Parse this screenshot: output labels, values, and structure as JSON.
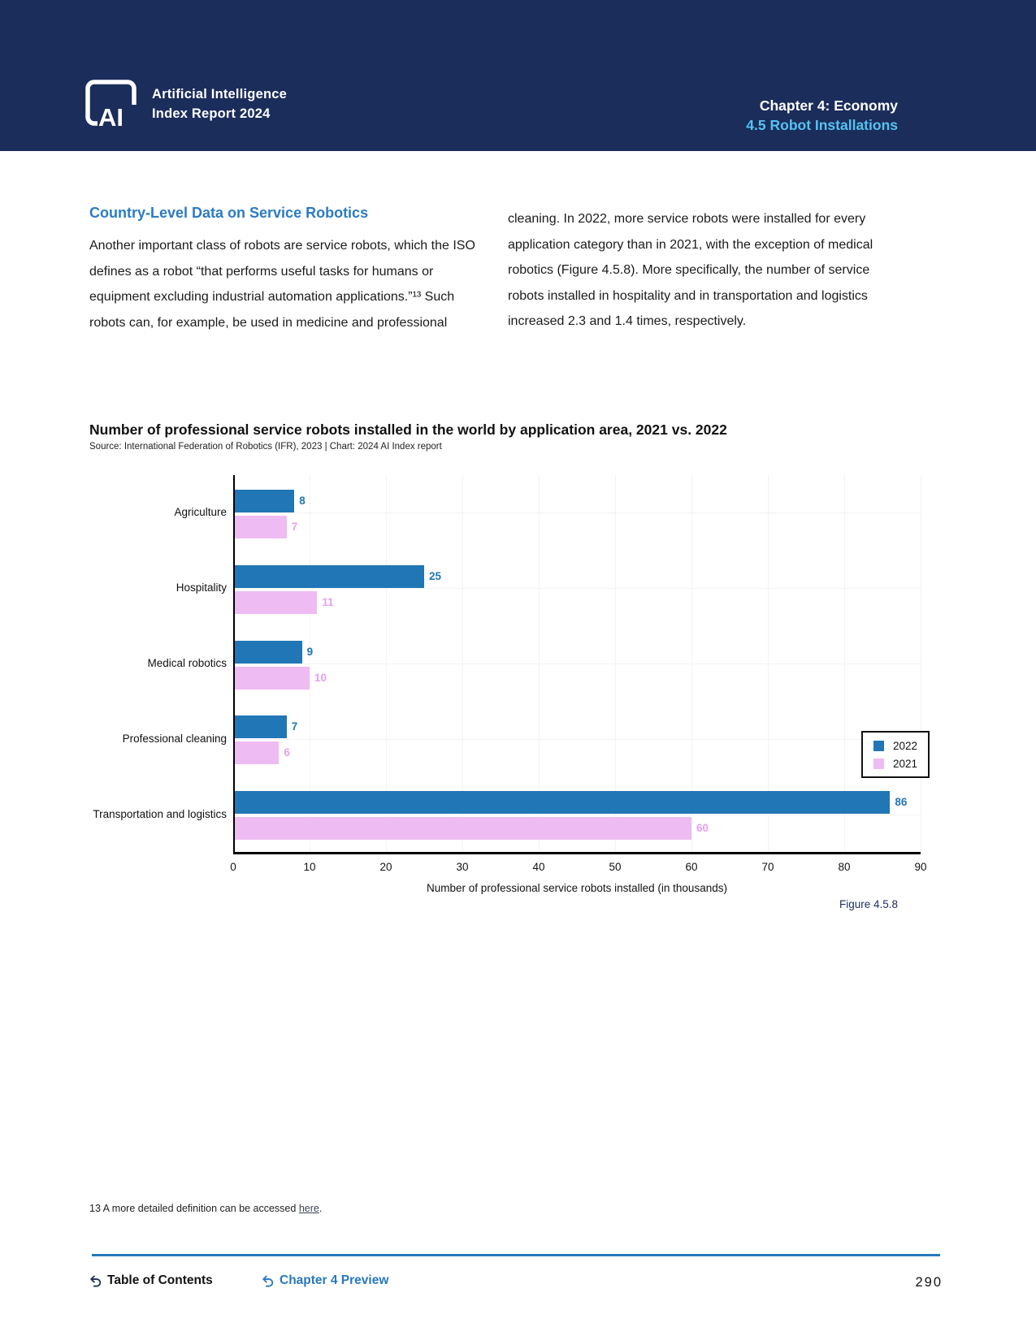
{
  "header": {
    "brand_line1": "Artificial Intelligence",
    "brand_line2": "Index Report 2024",
    "logo_monogram": "AI",
    "chapter": "Chapter 4: Economy",
    "section": "4.5 Robot Installations"
  },
  "article": {
    "heading": "Country-Level Data on Service Robotics",
    "col_left": "Another important class of robots are service robots, which the ISO defines as a robot “that performs useful tasks for humans or equipment excluding industrial automation applications.”¹³ Such robots can, for example, be used in medicine and professional",
    "col_right": "cleaning. In 2022, more service robots were installed for every application category than in 2021, with the exception of medical robotics (Figure 4.5.8). More specifically, the number of service robots installed in hospitality and in transportation and logistics increased 2.3 and 1.4 times, respectively."
  },
  "chart": {
    "title": "Number of professional service robots installed in the world by application area, 2021 vs. 2022",
    "source": "Source: International Federation of Robotics (IFR), 2023 | Chart: 2024 AI Index report",
    "figure_label": "Figure 4.5.8"
  },
  "chart_data": {
    "type": "bar",
    "orientation": "horizontal",
    "categories": [
      "Agriculture",
      "Hospitality",
      "Medical robotics",
      "Professional cleaning",
      "Transportation and logistics"
    ],
    "series": [
      {
        "name": "2022",
        "color": "#2176B5",
        "label_color": "#2176B5",
        "values": [
          8,
          25,
          9,
          7,
          86
        ]
      },
      {
        "name": "2021",
        "color": "#EFBBF3",
        "label_color": "#E89FEC",
        "values": [
          7,
          11,
          10,
          6,
          60
        ]
      }
    ],
    "xlabel": "Number of professional service robots installed (in thousands)",
    "xlim": [
      0,
      90
    ],
    "xticks": [
      0,
      10,
      20,
      30,
      40,
      50,
      60,
      70,
      80,
      90
    ],
    "grid": true,
    "legend_position": "right-middle"
  },
  "footnote": {
    "prefix": "13 A more detailed definition can be accessed ",
    "link": "here",
    "suffix": "."
  },
  "footer": {
    "toc": "Table of Contents",
    "preview": "Chapter 4 Preview",
    "page_number": "290"
  },
  "colors": {
    "header_navy": "#1B2D5B",
    "section_lightblue": "#55C3F0",
    "accent_blue": "#2878BE",
    "heading_blue": "#2B7BC4",
    "bar_2022": "#2176B5",
    "bar_2021": "#EFBBF3",
    "grid": "#f3f3f3"
  }
}
